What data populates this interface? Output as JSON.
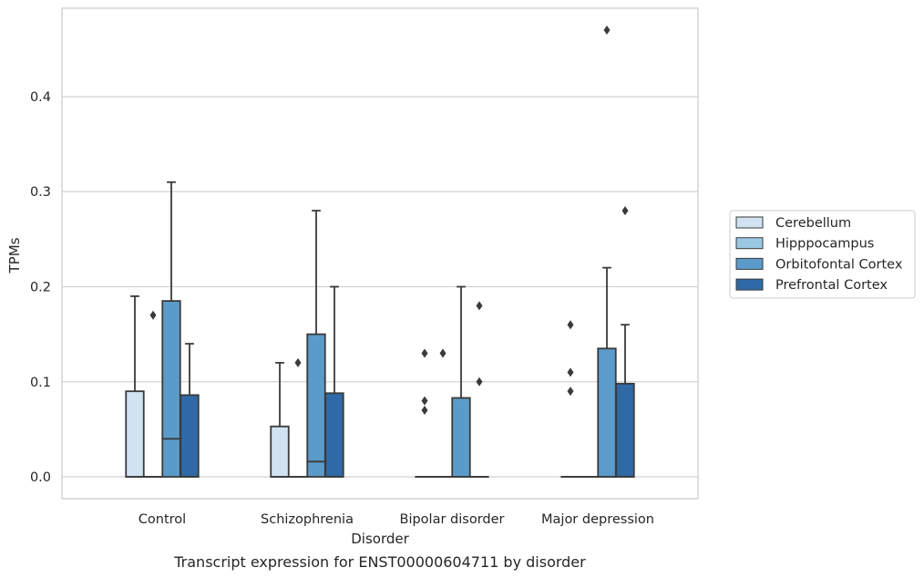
{
  "chart_data": {
    "type": "box",
    "caption": "Transcript expression for ENST00000604711 by disorder",
    "xlabel": "Disorder",
    "ylabel": "TPMs",
    "ylim": [
      -0.023,
      0.493
    ],
    "yticks": [
      0.0,
      0.1,
      0.2,
      0.3,
      0.4
    ],
    "ytick_labels": [
      "0.0",
      "0.1",
      "0.2",
      "0.3",
      "0.4"
    ],
    "grid": "horizontal",
    "legend_position": "right",
    "categories": [
      "Control",
      "Schizophrenia",
      "Bipolar disorder",
      "Major depression"
    ],
    "series": [
      {
        "name": "Cerebellum",
        "color": "#d1e2f2",
        "boxes": [
          {
            "q1": 0.0,
            "median": 0.0,
            "q3": 0.09,
            "whisker_low": 0.0,
            "whisker_high": 0.19,
            "outliers": []
          },
          {
            "q1": 0.0,
            "median": 0.0,
            "q3": 0.053,
            "whisker_low": 0.0,
            "whisker_high": 0.12,
            "outliers": []
          },
          {
            "q1": 0.0,
            "median": 0.0,
            "q3": 0.0,
            "whisker_low": 0.0,
            "whisker_high": 0.0,
            "outliers": [
              0.13,
              0.08,
              0.07
            ]
          },
          {
            "q1": 0.0,
            "median": 0.0,
            "q3": 0.0,
            "whisker_low": 0.0,
            "whisker_high": 0.0,
            "outliers": [
              0.16,
              0.11,
              0.09
            ]
          }
        ]
      },
      {
        "name": "Hipppocampus",
        "color": "#9ac8e0",
        "boxes": [
          {
            "q1": 0.0,
            "median": 0.0,
            "q3": 0.0,
            "whisker_low": 0.0,
            "whisker_high": 0.0,
            "outliers": [
              0.17
            ]
          },
          {
            "q1": 0.0,
            "median": 0.0,
            "q3": 0.0,
            "whisker_low": 0.0,
            "whisker_high": 0.0,
            "outliers": [
              0.12
            ]
          },
          {
            "q1": 0.0,
            "median": 0.0,
            "q3": 0.0,
            "whisker_low": 0.0,
            "whisker_high": 0.0,
            "outliers": [
              0.13
            ]
          },
          {
            "q1": 0.0,
            "median": 0.0,
            "q3": 0.0,
            "whisker_low": 0.0,
            "whisker_high": 0.0,
            "outliers": []
          }
        ]
      },
      {
        "name": "Orbitofontal Cortex",
        "color": "#5b9bc9",
        "boxes": [
          {
            "q1": 0.0,
            "median": 0.04,
            "q3": 0.185,
            "whisker_low": 0.0,
            "whisker_high": 0.31,
            "outliers": []
          },
          {
            "q1": 0.0,
            "median": 0.016,
            "q3": 0.15,
            "whisker_low": 0.0,
            "whisker_high": 0.28,
            "outliers": []
          },
          {
            "q1": 0.0,
            "median": 0.0,
            "q3": 0.083,
            "whisker_low": 0.0,
            "whisker_high": 0.2,
            "outliers": []
          },
          {
            "q1": 0.0,
            "median": 0.0,
            "q3": 0.135,
            "whisker_low": 0.0,
            "whisker_high": 0.22,
            "outliers": [
              0.47
            ]
          }
        ]
      },
      {
        "name": "Prefrontal Cortex",
        "color": "#2f6aa6",
        "boxes": [
          {
            "q1": 0.0,
            "median": 0.0,
            "q3": 0.086,
            "whisker_low": 0.0,
            "whisker_high": 0.14,
            "outliers": []
          },
          {
            "q1": 0.0,
            "median": 0.0,
            "q3": 0.088,
            "whisker_low": 0.0,
            "whisker_high": 0.2,
            "outliers": []
          },
          {
            "q1": 0.0,
            "median": 0.0,
            "q3": 0.0,
            "whisker_low": 0.0,
            "whisker_high": 0.0,
            "outliers": [
              0.18,
              0.1
            ]
          },
          {
            "q1": 0.0,
            "median": 0.0,
            "q3": 0.098,
            "whisker_low": 0.0,
            "whisker_high": 0.16,
            "outliers": [
              0.28
            ]
          }
        ]
      }
    ]
  }
}
